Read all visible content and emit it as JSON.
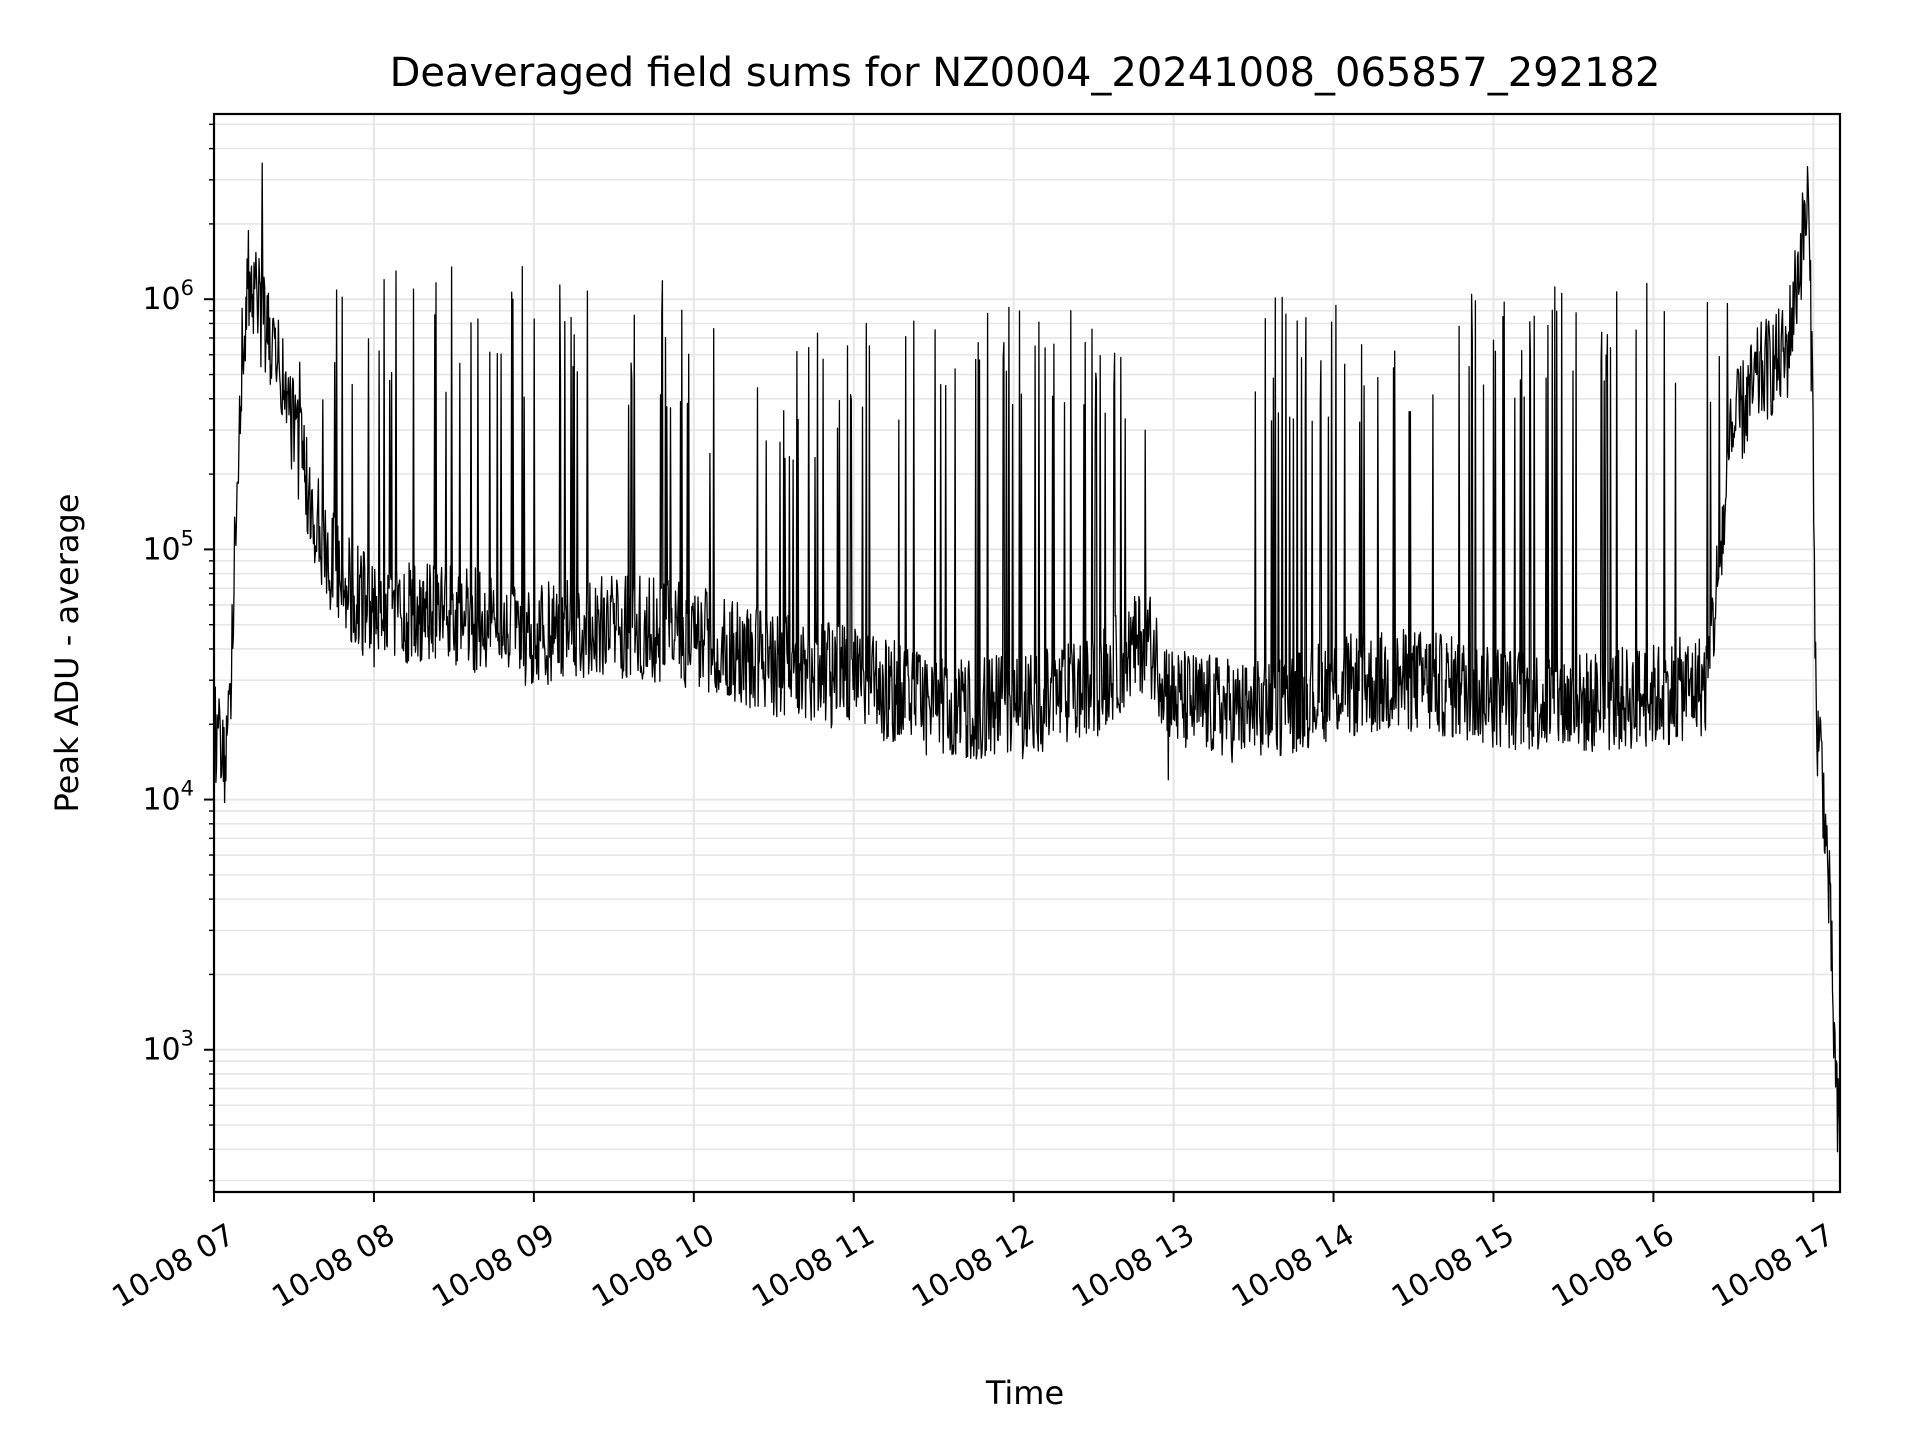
{
  "chart_data": {
    "type": "line",
    "title": "Deaveraged field sums for NZ0004_20241008_065857_292182",
    "xlabel": "Time",
    "ylabel": "Peak ADU - average",
    "yscale": "log",
    "ylim": [
      270,
      5500000
    ],
    "xlim": [
      "2024-10-08 07:00",
      "2024-10-08 17:10"
    ],
    "x_ticks": [
      "10-08 07",
      "10-08 08",
      "10-08 09",
      "10-08 10",
      "10-08 11",
      "10-08 12",
      "10-08 13",
      "10-08 14",
      "10-08 15",
      "10-08 16",
      "10-08 17"
    ],
    "y_ticks": [
      {
        "base": "10",
        "exp": "3",
        "value": 1000
      },
      {
        "base": "10",
        "exp": "4",
        "value": 10000
      },
      {
        "base": "10",
        "exp": "5",
        "value": 100000
      },
      {
        "base": "10",
        "exp": "6",
        "value": 1000000
      }
    ],
    "grid": true,
    "line_color": "#000000",
    "baseline": {
      "x": [
        "2024-10-08 07:00",
        "2024-10-08 07:05",
        "2024-10-08 07:08",
        "2024-10-08 07:10",
        "2024-10-08 07:13",
        "2024-10-08 07:16",
        "2024-10-08 07:20",
        "2024-10-08 07:25",
        "2024-10-08 07:30",
        "2024-10-08 07:35",
        "2024-10-08 07:40",
        "2024-10-08 07:50",
        "2024-10-08 08:00",
        "2024-10-08 08:30",
        "2024-10-08 09:00",
        "2024-10-08 09:30",
        "2024-10-08 10:00",
        "2024-10-08 10:30",
        "2024-10-08 11:00",
        "2024-10-08 11:30",
        "2024-10-08 12:00",
        "2024-10-08 12:30",
        "2024-10-08 12:50",
        "2024-10-08 13:00",
        "2024-10-08 13:30",
        "2024-10-08 14:00",
        "2024-10-08 14:30",
        "2024-10-08 15:00",
        "2024-10-08 15:30",
        "2024-10-08 16:00",
        "2024-10-08 16:20",
        "2024-10-08 16:30",
        "2024-10-08 16:40",
        "2024-10-08 16:50",
        "2024-10-08 16:58",
        "2024-10-08 17:00",
        "2024-10-08 17:01",
        "2024-10-08 17:03",
        "2024-10-08 17:06",
        "2024-10-08 17:09"
      ],
      "y": [
        20000,
        13000,
        110000,
        500000,
        1200000,
        1000000,
        700000,
        500000,
        300000,
        180000,
        110000,
        70000,
        55000,
        55000,
        45000,
        50000,
        45000,
        35000,
        30000,
        24000,
        23000,
        28000,
        45000,
        25000,
        22000,
        28000,
        30000,
        26000,
        24000,
        26000,
        29000,
        300000,
        500000,
        600000,
        2500000,
        300000,
        20000,
        15000,
        4000,
        500
      ]
    },
    "spike_bands": [
      {
        "from": "2024-10-08 07:30",
        "to": "2024-10-08 08:00",
        "peak": 1400000
      },
      {
        "from": "2024-10-08 08:00",
        "to": "2024-10-08 09:00",
        "peak": 1400000
      },
      {
        "from": "2024-10-08 09:00",
        "to": "2024-10-08 10:00",
        "peak": 1200000
      },
      {
        "from": "2024-10-08 10:00",
        "to": "2024-10-08 11:00",
        "peak": 800000
      },
      {
        "from": "2024-10-08 11:00",
        "to": "2024-10-08 12:00",
        "peak": 1100000
      },
      {
        "from": "2024-10-08 12:00",
        "to": "2024-10-08 12:50",
        "peak": 900000
      },
      {
        "from": "2024-10-08 13:30",
        "to": "2024-10-08 14:30",
        "peak": 1100000
      },
      {
        "from": "2024-10-08 14:30",
        "to": "2024-10-08 15:30",
        "peak": 1150000
      },
      {
        "from": "2024-10-08 15:30",
        "to": "2024-10-08 16:30",
        "peak": 1300000
      }
    ],
    "notable_points": [
      {
        "x": "2024-10-08 07:18",
        "y": 3500000
      },
      {
        "x": "2024-10-08 07:15",
        "y": 1400000
      },
      {
        "x": "2024-10-08 16:58",
        "y": 2900000
      },
      {
        "x": "2024-10-08 12:58",
        "y": 12000
      },
      {
        "x": "2024-10-08 17:10",
        "y": 300
      }
    ]
  }
}
